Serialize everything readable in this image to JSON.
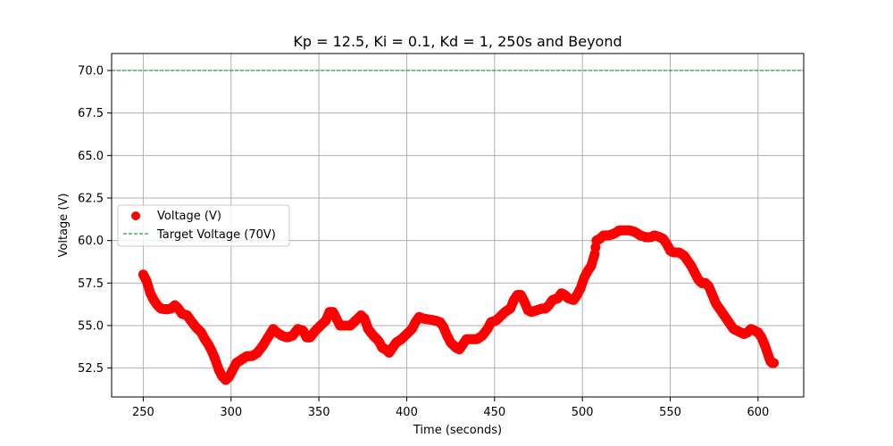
{
  "chart_data": {
    "type": "scatter",
    "title": "Kp = 12.5, Ki = 0.1, Kd = 1, 250s and Beyond",
    "xlabel": "Time (seconds)",
    "ylabel": "Voltage (V)",
    "xlim": [
      232,
      626
    ],
    "ylim": [
      50.8,
      71.0
    ],
    "xticks": [
      250,
      300,
      350,
      400,
      450,
      500,
      550,
      600
    ],
    "yticks": [
      52.5,
      55.0,
      57.5,
      60.0,
      62.5,
      65.0,
      67.5,
      70.0
    ],
    "xtick_labels": [
      "250",
      "300",
      "350",
      "400",
      "450",
      "500",
      "550",
      "600"
    ],
    "ytick_labels": [
      "52.5",
      "55.0",
      "57.5",
      "60.0",
      "62.5",
      "65.0",
      "67.5",
      "70.0"
    ],
    "grid": true,
    "legend_position": "center-left",
    "series": [
      {
        "name": "Voltage (V)",
        "kind": "scatter",
        "color": "#ff0000",
        "points": [
          [
            250,
            58.0
          ],
          [
            252,
            57.6
          ],
          [
            254,
            56.9
          ],
          [
            256,
            56.5
          ],
          [
            258,
            56.2
          ],
          [
            260,
            56.0
          ],
          [
            263,
            55.95
          ],
          [
            266,
            56.0
          ],
          [
            268,
            56.2
          ],
          [
            270,
            56.0
          ],
          [
            272,
            55.7
          ],
          [
            275,
            55.6
          ],
          [
            277,
            55.3
          ],
          [
            280,
            54.9
          ],
          [
            283,
            54.6
          ],
          [
            285,
            54.2
          ],
          [
            287,
            53.9
          ],
          [
            289,
            53.5
          ],
          [
            291,
            53.0
          ],
          [
            293,
            52.4
          ],
          [
            295,
            52.0
          ],
          [
            297,
            51.8
          ],
          [
            299,
            52.0
          ],
          [
            301,
            52.4
          ],
          [
            303,
            52.8
          ],
          [
            306,
            53.0
          ],
          [
            309,
            53.2
          ],
          [
            312,
            53.2
          ],
          [
            315,
            53.4
          ],
          [
            318,
            53.8
          ],
          [
            321,
            54.3
          ],
          [
            324,
            54.8
          ],
          [
            326,
            54.6
          ],
          [
            329,
            54.4
          ],
          [
            332,
            54.3
          ],
          [
            335,
            54.4
          ],
          [
            338,
            54.8
          ],
          [
            341,
            54.7
          ],
          [
            343,
            54.3
          ],
          [
            345,
            54.3
          ],
          [
            348,
            54.7
          ],
          [
            351,
            55.0
          ],
          [
            354,
            55.3
          ],
          [
            356,
            55.8
          ],
          [
            358,
            55.8
          ],
          [
            360,
            55.4
          ],
          [
            362,
            55.0
          ],
          [
            365,
            55.0
          ],
          [
            368,
            55.0
          ],
          [
            371,
            55.3
          ],
          [
            374,
            55.6
          ],
          [
            376,
            55.4
          ],
          [
            378,
            54.8
          ],
          [
            381,
            54.4
          ],
          [
            384,
            54.1
          ],
          [
            386,
            53.7
          ],
          [
            388,
            53.6
          ],
          [
            390,
            53.4
          ],
          [
            392,
            53.7
          ],
          [
            394,
            54.0
          ],
          [
            397,
            54.2
          ],
          [
            400,
            54.5
          ],
          [
            403,
            54.8
          ],
          [
            405,
            55.2
          ],
          [
            407,
            55.5
          ],
          [
            410,
            55.4
          ],
          [
            413,
            55.35
          ],
          [
            416,
            55.3
          ],
          [
            419,
            55.2
          ],
          [
            421,
            54.9
          ],
          [
            423,
            54.4
          ],
          [
            425,
            54.0
          ],
          [
            428,
            53.7
          ],
          [
            430,
            53.6
          ],
          [
            432,
            53.9
          ],
          [
            434,
            54.2
          ],
          [
            437,
            54.2
          ],
          [
            440,
            54.2
          ],
          [
            443,
            54.4
          ],
          [
            446,
            54.8
          ],
          [
            448,
            55.2
          ],
          [
            451,
            55.3
          ],
          [
            454,
            55.6
          ],
          [
            456,
            55.8
          ],
          [
            459,
            56.0
          ],
          [
            461,
            56.5
          ],
          [
            463,
            56.8
          ],
          [
            465,
            56.8
          ],
          [
            467,
            56.4
          ],
          [
            469,
            55.9
          ],
          [
            471,
            55.8
          ],
          [
            474,
            55.9
          ],
          [
            477,
            56.0
          ],
          [
            479,
            56.0
          ],
          [
            481,
            56.2
          ],
          [
            483,
            56.5
          ],
          [
            486,
            56.6
          ],
          [
            488,
            56.9
          ],
          [
            490,
            56.8
          ],
          [
            492,
            56.6
          ],
          [
            495,
            56.5
          ],
          [
            497,
            56.8
          ],
          [
            499,
            57.2
          ],
          [
            501,
            57.8
          ],
          [
            503,
            58.2
          ],
          [
            505,
            58.5
          ],
          [
            507,
            59.2
          ],
          [
            508,
            60.0
          ],
          [
            510,
            60.1
          ],
          [
            512,
            60.3
          ],
          [
            515,
            60.3
          ],
          [
            518,
            60.4
          ],
          [
            521,
            60.6
          ],
          [
            524,
            60.6
          ],
          [
            527,
            60.6
          ],
          [
            530,
            60.5
          ],
          [
            533,
            60.3
          ],
          [
            536,
            60.2
          ],
          [
            539,
            60.2
          ],
          [
            541,
            60.3
          ],
          [
            544,
            60.2
          ],
          [
            546,
            60.1
          ],
          [
            548,
            59.8
          ],
          [
            550,
            59.4
          ],
          [
            552,
            59.3
          ],
          [
            555,
            59.3
          ],
          [
            558,
            59.1
          ],
          [
            560,
            58.8
          ],
          [
            562,
            58.5
          ],
          [
            564,
            58.1
          ],
          [
            566,
            57.7
          ],
          [
            568,
            57.5
          ],
          [
            570,
            57.5
          ],
          [
            572,
            57.3
          ],
          [
            574,
            56.8
          ],
          [
            576,
            56.3
          ],
          [
            578,
            56.0
          ],
          [
            580,
            55.7
          ],
          [
            582,
            55.4
          ],
          [
            584,
            55.1
          ],
          [
            586,
            54.8
          ],
          [
            588,
            54.7
          ],
          [
            590,
            54.6
          ],
          [
            592,
            54.5
          ],
          [
            594,
            54.6
          ],
          [
            596,
            54.8
          ],
          [
            598,
            54.7
          ],
          [
            600,
            54.6
          ],
          [
            602,
            54.3
          ],
          [
            604,
            53.8
          ],
          [
            606,
            53.2
          ],
          [
            607,
            52.9
          ],
          [
            608,
            52.8
          ],
          [
            609,
            52.8
          ]
        ]
      },
      {
        "name": "Target Voltage (70V)",
        "kind": "hline",
        "color": "#008000",
        "y": 70.0
      }
    ]
  }
}
